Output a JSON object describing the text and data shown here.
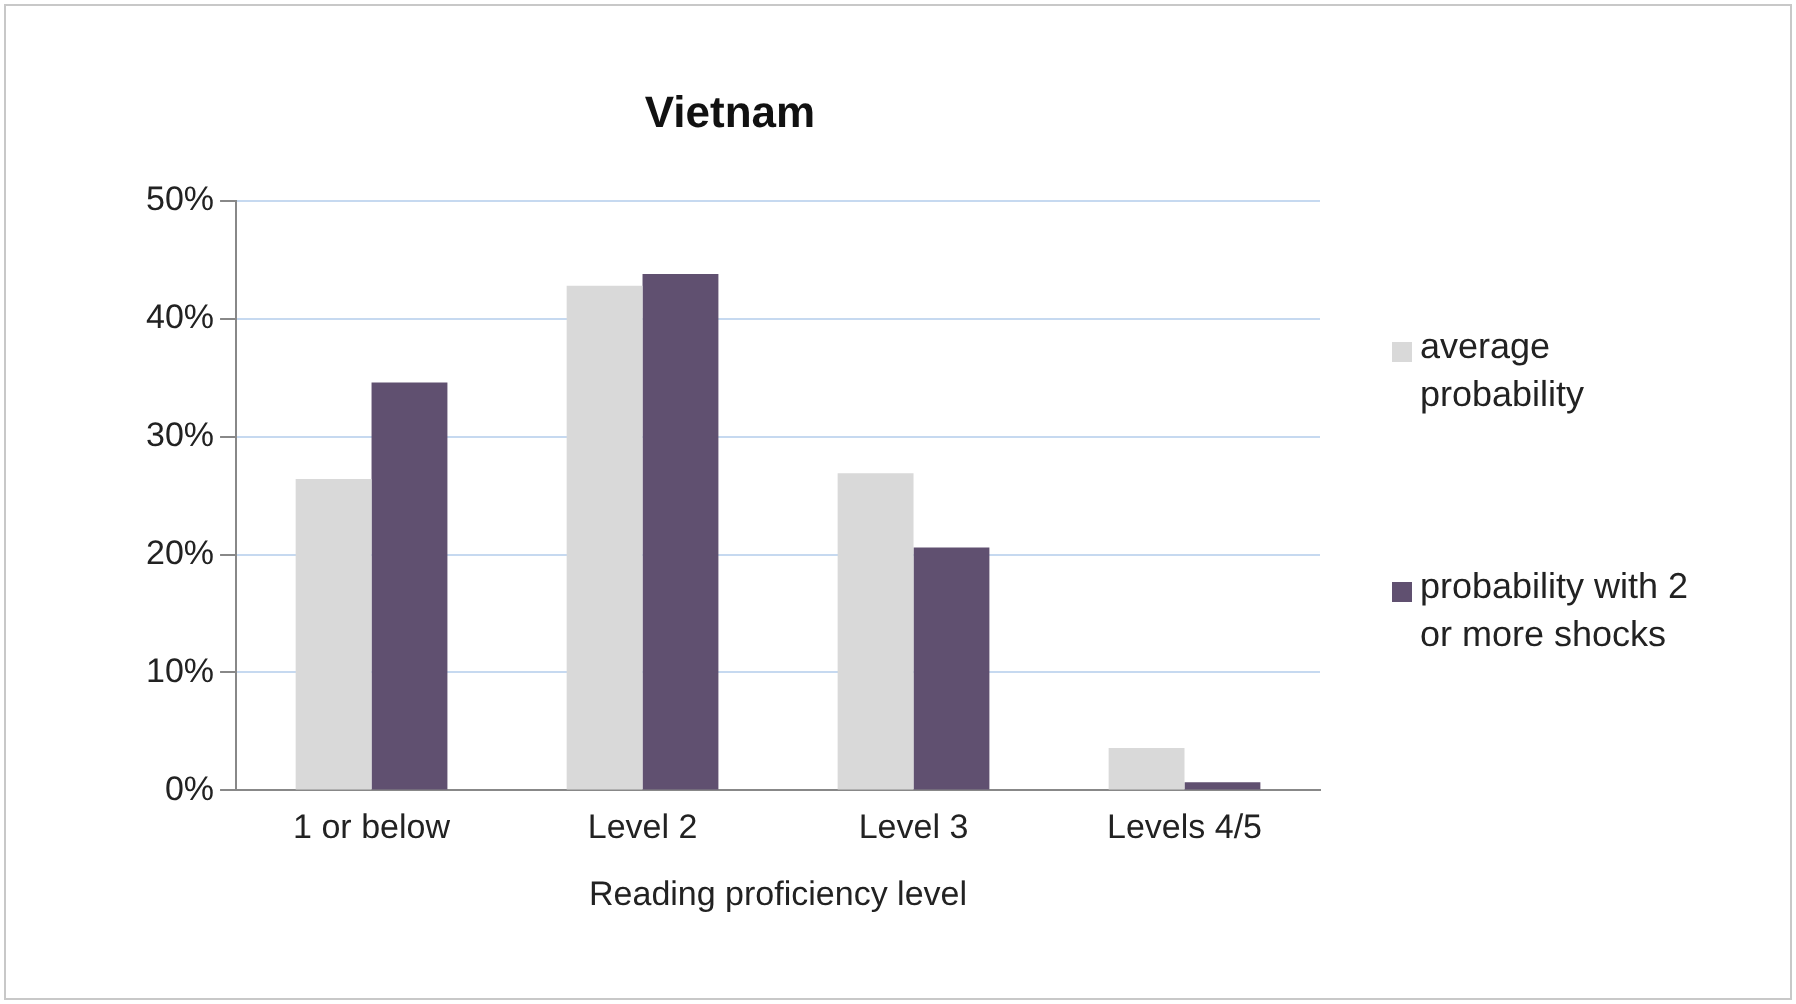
{
  "chart_data": {
    "type": "bar",
    "title": "Vietnam",
    "xlabel": "Reading proficiency level",
    "categories": [
      "1 or below",
      "Level 2",
      "Level 3",
      "Levels 4/5"
    ],
    "series": [
      {
        "name": "average probability",
        "color": "#d9d9d9",
        "values": [
          26.4,
          42.8,
          26.9,
          3.6
        ]
      },
      {
        "name": "probability with 2 or more shocks",
        "color": "#605070",
        "values": [
          34.6,
          43.8,
          20.6,
          0.7
        ]
      }
    ],
    "ylim": [
      0,
      50
    ],
    "yticks": [
      {
        "value": 0,
        "label": "0%"
      },
      {
        "value": 10,
        "label": "10%"
      },
      {
        "value": 20,
        "label": "20%"
      },
      {
        "value": 30,
        "label": "30%"
      },
      {
        "value": 40,
        "label": "40%"
      },
      {
        "value": 50,
        "label": "50%"
      }
    ],
    "grid": "y",
    "legend": "right"
  }
}
